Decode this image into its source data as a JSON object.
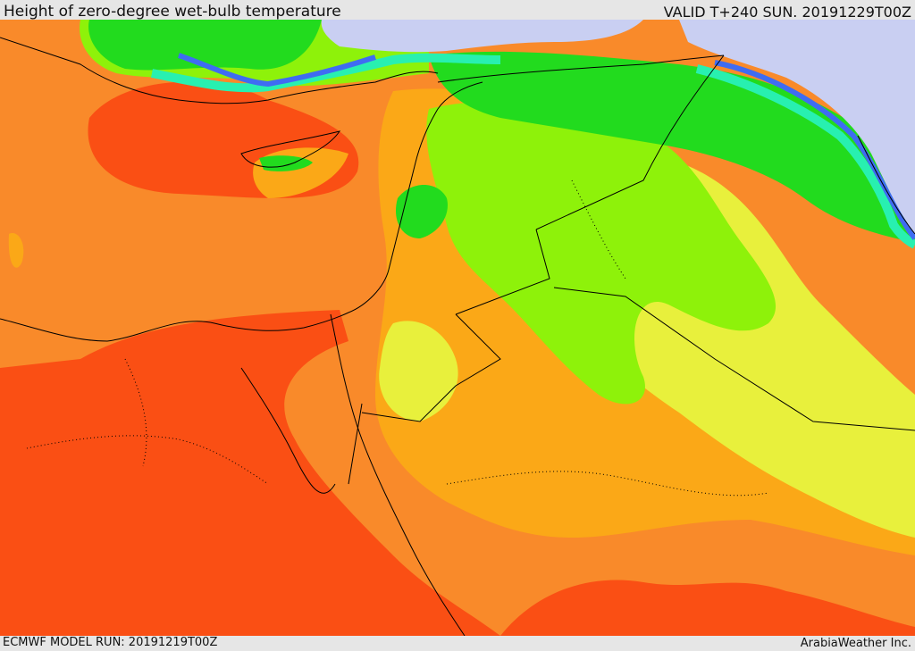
{
  "header": {
    "title": "Height of zero-degree wet-bulb temperature",
    "valid": "VALID T+240 SUN. 20191229T00Z"
  },
  "footer": {
    "model_run": "ECMWF MODEL RUN: 20191219T00Z",
    "credit": "ArabiaWeather Inc."
  },
  "palette": {
    "very_high": "#fa4f14",
    "high": "#f98a2a",
    "mid_high": "#fba817",
    "mid": "#e8f03c",
    "mid_low": "#8ef20a",
    "low": "#22db1e",
    "lower": "#28f0b0",
    "very_low": "#3f6cf2",
    "lowest": "#c9cff2"
  }
}
